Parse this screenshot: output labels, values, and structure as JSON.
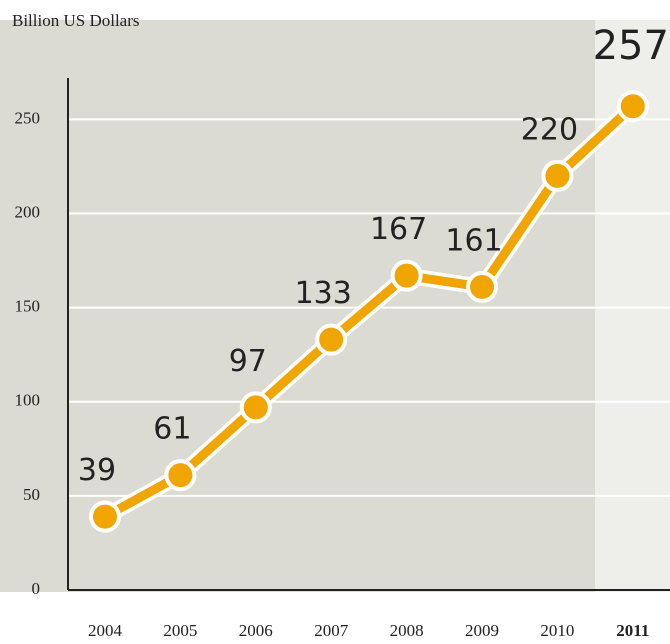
{
  "chart_data": {
    "type": "line",
    "y_label": "Billion US Dollars",
    "categories": [
      "2004",
      "2005",
      "2006",
      "2007",
      "2008",
      "2009",
      "2010",
      "2011"
    ],
    "values": [
      39,
      61,
      97,
      133,
      167,
      161,
      220,
      257
    ],
    "color": "#f0a500",
    "ylim": [
      0,
      272
    ],
    "yticks": [
      0,
      50,
      100,
      150,
      200,
      250
    ],
    "grid": true
  }
}
